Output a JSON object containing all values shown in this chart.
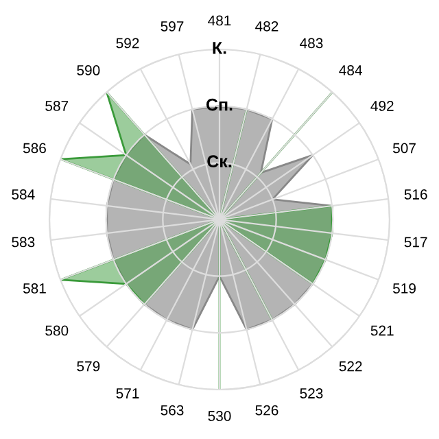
{
  "chart_data": {
    "type": "radar",
    "categories": [
      "481",
      "482",
      "483",
      "484",
      "492",
      "507",
      "516",
      "517",
      "519",
      "521",
      "522",
      "523",
      "526",
      "530",
      "563",
      "571",
      "579",
      "580",
      "581",
      "583",
      "584",
      "586",
      "587",
      "590",
      "592",
      "597"
    ],
    "series": [
      {
        "type": "area",
        "color": "#b4b4b4",
        "values": [
          2,
          2,
          2,
          1.1,
          2,
          1,
          2,
          2,
          2,
          2,
          2,
          2,
          2,
          1,
          2,
          2,
          2,
          2,
          2,
          2,
          2,
          2,
          2,
          2,
          1.1,
          2
        ]
      },
      {
        "type": "area",
        "color": "#3a9a3a",
        "values": [
          0,
          2,
          0,
          3,
          0,
          0,
          2,
          2,
          2,
          2,
          0,
          2,
          0,
          3,
          0,
          0,
          2,
          2,
          3,
          0,
          0,
          3,
          2,
          3,
          0,
          0
        ]
      }
    ],
    "ylim": [
      0,
      3
    ],
    "yticks": [
      {
        "value": 1,
        "label": "Ск."
      },
      {
        "value": 2,
        "label": "Сп."
      },
      {
        "value": 3,
        "label": "К."
      }
    ],
    "grid": true,
    "legend": false,
    "marker": "none"
  }
}
